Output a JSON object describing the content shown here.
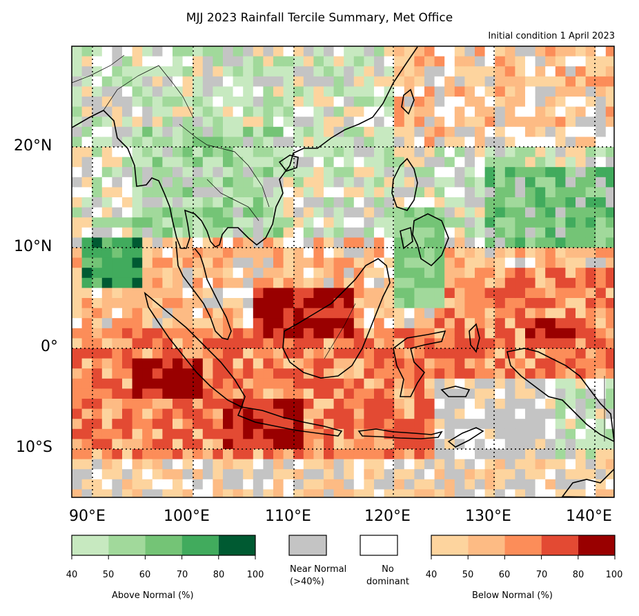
{
  "title": "MJJ 2023 Rainfall Tercile Summary, Met Office",
  "subtitle": "Initial condition 1 April 2023",
  "lat_labels": [
    "20°N",
    "10°N",
    "0°",
    "10°S"
  ],
  "lon_labels": [
    "90°E",
    "100°E",
    "110°E",
    "120°E",
    "130°E",
    "140°E"
  ],
  "legend": {
    "above": {
      "label": "Above Normal (%)",
      "ticks": [
        "40",
        "50",
        "60",
        "70",
        "80",
        "100"
      ],
      "colors": [
        "#c7e9c0",
        "#a1d99b",
        "#74c476",
        "#41ab5d",
        "#005a32"
      ]
    },
    "near": {
      "label": "Near Normal\n(>40%)",
      "color": "#c4c4c4"
    },
    "nodom": {
      "label": "No\ndominant",
      "color": "#ffffff"
    },
    "below": {
      "label": "Below Normal (%)",
      "ticks": [
        "40",
        "50",
        "60",
        "70",
        "80",
        "100"
      ],
      "colors": [
        "#fdd49e",
        "#fdbb84",
        "#fc8d59",
        "#e34a33",
        "#990000"
      ]
    }
  }
}
